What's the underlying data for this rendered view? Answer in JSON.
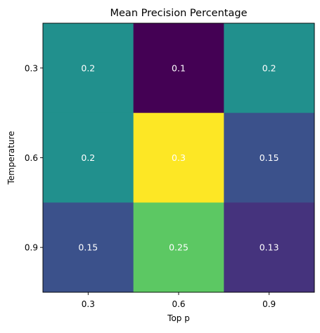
{
  "chart_data": {
    "type": "heatmap",
    "title": "Mean Precision Percentage",
    "xlabel": "Top p",
    "ylabel": "Temperature",
    "x_categories": [
      "0.3",
      "0.6",
      "0.9"
    ],
    "y_categories": [
      "0.3",
      "0.6",
      "0.9"
    ],
    "values": [
      [
        0.2,
        0.1,
        0.2
      ],
      [
        0.2,
        0.3,
        0.15
      ],
      [
        0.15,
        0.25,
        0.13
      ]
    ],
    "value_labels": [
      [
        "0.2",
        "0.1",
        "0.2"
      ],
      [
        "0.2",
        "0.3",
        "0.15"
      ],
      [
        "0.15",
        "0.25",
        "0.13"
      ]
    ],
    "colormap": "viridis",
    "color_range": [
      0.1,
      0.3
    ],
    "cell_text_color": "#ffffff",
    "grid": false,
    "legend": "none"
  }
}
